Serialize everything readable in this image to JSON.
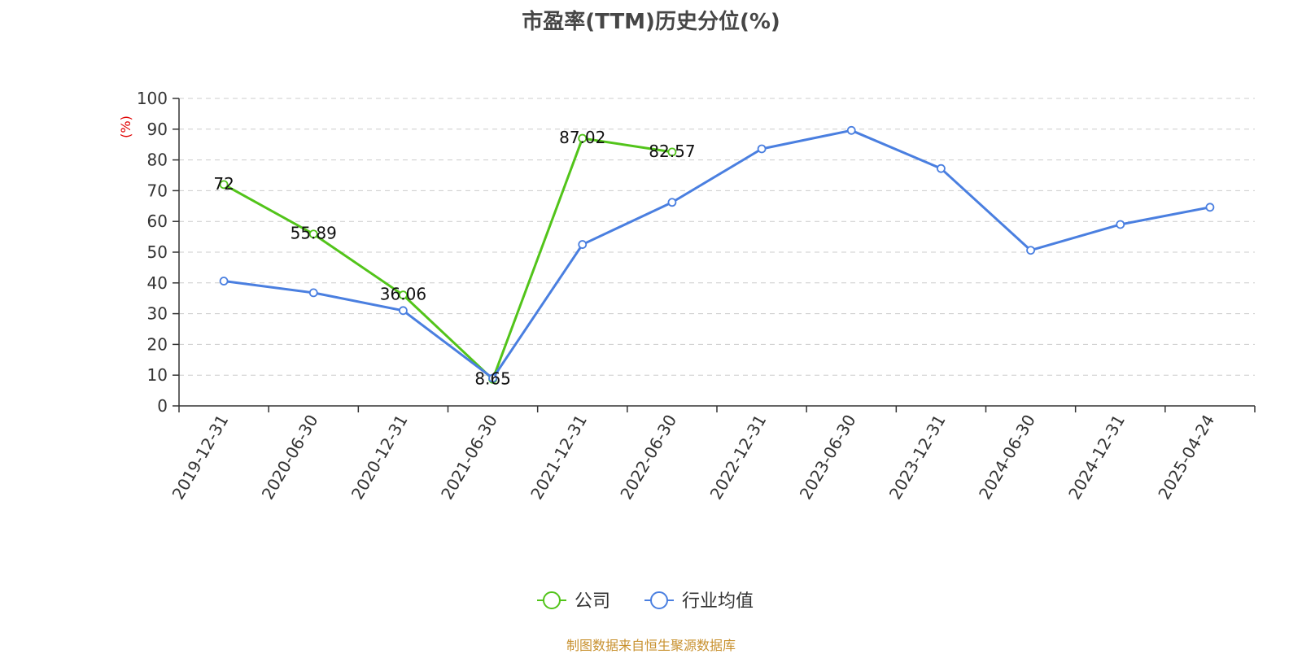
{
  "chart_data": {
    "type": "line",
    "title": "市盈率(TTM)历史分位(%)",
    "ylabel": "(%)",
    "ylim": [
      0,
      100
    ],
    "yticks": [
      0,
      10,
      20,
      30,
      40,
      50,
      60,
      70,
      80,
      90,
      100
    ],
    "grid": true,
    "legend_position": "bottom-center",
    "categories": [
      "2019-12-31",
      "2020-06-30",
      "2020-12-31",
      "2021-06-30",
      "2021-12-31",
      "2022-06-30",
      "2022-12-31",
      "2023-06-30",
      "2023-12-31",
      "2024-06-30",
      "2024-12-31",
      "2025-04-24"
    ],
    "series": [
      {
        "name": "公司",
        "color": "#52c41a",
        "values": [
          72,
          55.89,
          36.06,
          8.65,
          87.02,
          82.57,
          null,
          null,
          null,
          null,
          null,
          null
        ],
        "labels": [
          "72",
          "55.89",
          "36.06",
          "8.65",
          "87.02",
          "82.57",
          "",
          "",
          "",
          "",
          "",
          ""
        ]
      },
      {
        "name": "行业均值",
        "color": "#4a7fe0",
        "values": [
          40.6,
          36.8,
          31,
          9,
          52.5,
          66.2,
          83.6,
          89.6,
          77.2,
          50.6,
          59,
          64.6
        ]
      }
    ]
  },
  "footer": {
    "source": "制图数据来自恒生聚源数据库"
  }
}
